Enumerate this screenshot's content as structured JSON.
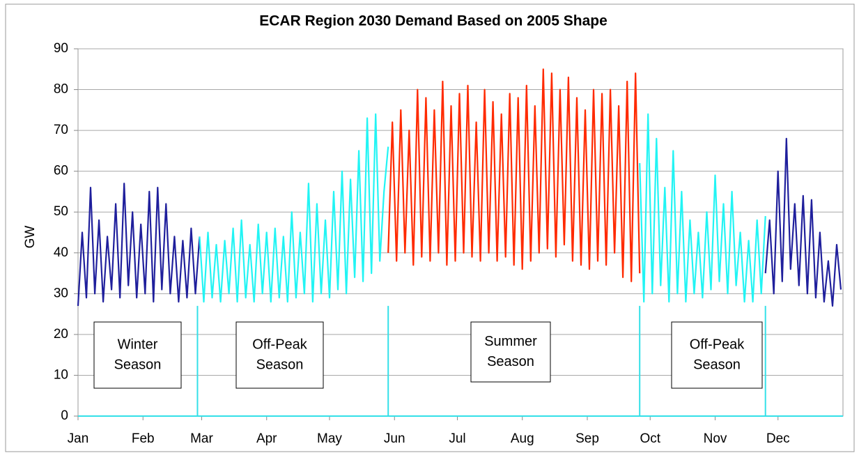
{
  "chart_data": {
    "type": "line",
    "title": "ECAR Region 2030 Demand Based on 2005 Shape",
    "ylabel": "GW",
    "xlim": [
      0,
      365
    ],
    "xticks": [
      {
        "value": 0,
        "label": "Jan"
      },
      {
        "value": 31,
        "label": "Feb"
      },
      {
        "value": 59,
        "label": "Mar"
      },
      {
        "value": 90,
        "label": "Apr"
      },
      {
        "value": 120,
        "label": "May"
      },
      {
        "value": 151,
        "label": "Jun"
      },
      {
        "value": 181,
        "label": "Jul"
      },
      {
        "value": 212,
        "label": "Aug"
      },
      {
        "value": 243,
        "label": "Sep"
      },
      {
        "value": 273,
        "label": "Oct"
      },
      {
        "value": 304,
        "label": "Nov"
      },
      {
        "value": 334,
        "label": "Dec"
      }
    ],
    "ylim": [
      0,
      90
    ],
    "yticks": [
      0,
      10,
      20,
      30,
      40,
      50,
      60,
      70,
      80,
      90
    ],
    "grid": true,
    "season_boundaries": [
      57,
      148,
      268,
      328
    ],
    "boundary_color": "#33e0e8",
    "annotations": [
      [
        "Winter",
        "Season"
      ],
      [
        "Off-Peak",
        "Season"
      ],
      [
        "Summer",
        "Season"
      ],
      [
        "Off-Peak",
        "Season"
      ]
    ],
    "series": [
      {
        "color": "#1f1f9c",
        "x": [
          0,
          2,
          4,
          6,
          8,
          10,
          12,
          14,
          16,
          18,
          20,
          22,
          24,
          26,
          28,
          30,
          32,
          34,
          36,
          38,
          40,
          42,
          44,
          46,
          48,
          50,
          52,
          54,
          56,
          58,
          60,
          328,
          330,
          332,
          334,
          336,
          338,
          340,
          342,
          344,
          346,
          348,
          350,
          352,
          354,
          356,
          358,
          360,
          362,
          364
        ],
        "values": [
          27,
          45,
          29,
          56,
          30,
          48,
          28,
          44,
          31,
          52,
          29,
          57,
          32,
          50,
          29,
          47,
          30,
          55,
          28,
          56,
          31,
          52,
          30,
          44,
          28,
          43,
          29,
          46,
          30,
          44,
          null,
          35,
          48,
          30,
          60,
          33,
          68,
          36,
          52,
          32,
          54,
          30,
          53,
          29,
          45,
          28,
          38,
          27,
          42,
          31
        ]
      },
      {
        "color": "#22f4f4",
        "x": [
          58,
          60,
          62,
          64,
          66,
          68,
          70,
          72,
          74,
          76,
          78,
          80,
          82,
          84,
          86,
          88,
          90,
          92,
          94,
          96,
          98,
          100,
          102,
          104,
          106,
          108,
          110,
          112,
          114,
          116,
          118,
          120,
          122,
          124,
          126,
          128,
          130,
          132,
          134,
          136,
          138,
          140,
          142,
          144,
          146,
          148,
          150,
          268,
          270,
          272,
          274,
          276,
          278,
          280,
          282,
          284,
          286,
          288,
          290,
          292,
          294,
          296,
          298,
          300,
          302,
          304,
          306,
          308,
          310,
          312,
          314,
          316,
          318,
          320,
          322,
          324,
          326,
          328
        ],
        "values": [
          44,
          28,
          45,
          29,
          42,
          28,
          43,
          30,
          46,
          28,
          48,
          29,
          42,
          28,
          47,
          30,
          45,
          28,
          46,
          29,
          44,
          28,
          50,
          29,
          45,
          30,
          57,
          28,
          52,
          30,
          48,
          29,
          55,
          31,
          60,
          30,
          58,
          34,
          65,
          33,
          73,
          35,
          74,
          38,
          55,
          66,
          null,
          62,
          28,
          74,
          30,
          68,
          32,
          56,
          28,
          65,
          30,
          55,
          28,
          48,
          30,
          45,
          29,
          50,
          31,
          59,
          33,
          52,
          30,
          55,
          32,
          45,
          28,
          43,
          28,
          48,
          30,
          49
        ]
      },
      {
        "color": "#ff2a00",
        "x": [
          148,
          150,
          152,
          154,
          156,
          158,
          160,
          162,
          164,
          166,
          168,
          170,
          172,
          174,
          176,
          178,
          180,
          182,
          184,
          186,
          188,
          190,
          192,
          194,
          196,
          198,
          200,
          202,
          204,
          206,
          208,
          210,
          212,
          214,
          216,
          218,
          220,
          222,
          224,
          226,
          228,
          230,
          232,
          234,
          236,
          238,
          240,
          242,
          244,
          246,
          248,
          250,
          252,
          254,
          256,
          258,
          260,
          262,
          264,
          266,
          268
        ],
        "values": [
          40,
          72,
          38,
          75,
          40,
          70,
          37,
          80,
          39,
          78,
          38,
          75,
          40,
          82,
          37,
          76,
          38,
          79,
          40,
          81,
          39,
          72,
          38,
          80,
          40,
          77,
          38,
          74,
          39,
          79,
          37,
          78,
          36,
          81,
          38,
          76,
          40,
          85,
          41,
          84,
          39,
          80,
          42,
          83,
          38,
          78,
          37,
          75,
          36,
          80,
          38,
          79,
          37,
          80,
          40,
          76,
          34,
          82,
          33,
          84,
          35
        ]
      }
    ]
  }
}
